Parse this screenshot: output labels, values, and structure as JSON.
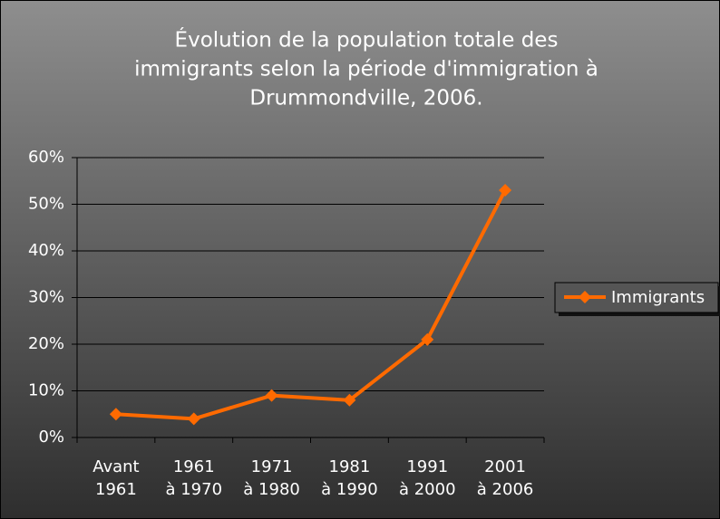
{
  "chart_data": {
    "type": "line",
    "title": [
      "Évolution de la population totale des",
      "immigrants selon  la période d'immigration à",
      "Drummondville, 2006."
    ],
    "categories": [
      [
        "Avant",
        "1961"
      ],
      [
        "1961",
        "à 1970"
      ],
      [
        "1971",
        "à 1980"
      ],
      [
        "1981",
        "à 1990"
      ],
      [
        "1991",
        "à 2000"
      ],
      [
        "2001",
        "à 2006"
      ]
    ],
    "series": [
      {
        "name": "Immigrants",
        "color": "#ff6a00",
        "values": [
          5,
          4,
          9,
          8,
          21,
          53
        ]
      }
    ],
    "ylim": [
      0,
      60
    ],
    "yticks": [
      {
        "value": 0,
        "label": "0%"
      },
      {
        "value": 10,
        "label": "10%"
      },
      {
        "value": 20,
        "label": "20%"
      },
      {
        "value": 30,
        "label": "30%"
      },
      {
        "value": 40,
        "label": "40%"
      },
      {
        "value": 50,
        "label": "50%"
      },
      {
        "value": 60,
        "label": "60%"
      }
    ],
    "grid": true,
    "legend": "right"
  }
}
